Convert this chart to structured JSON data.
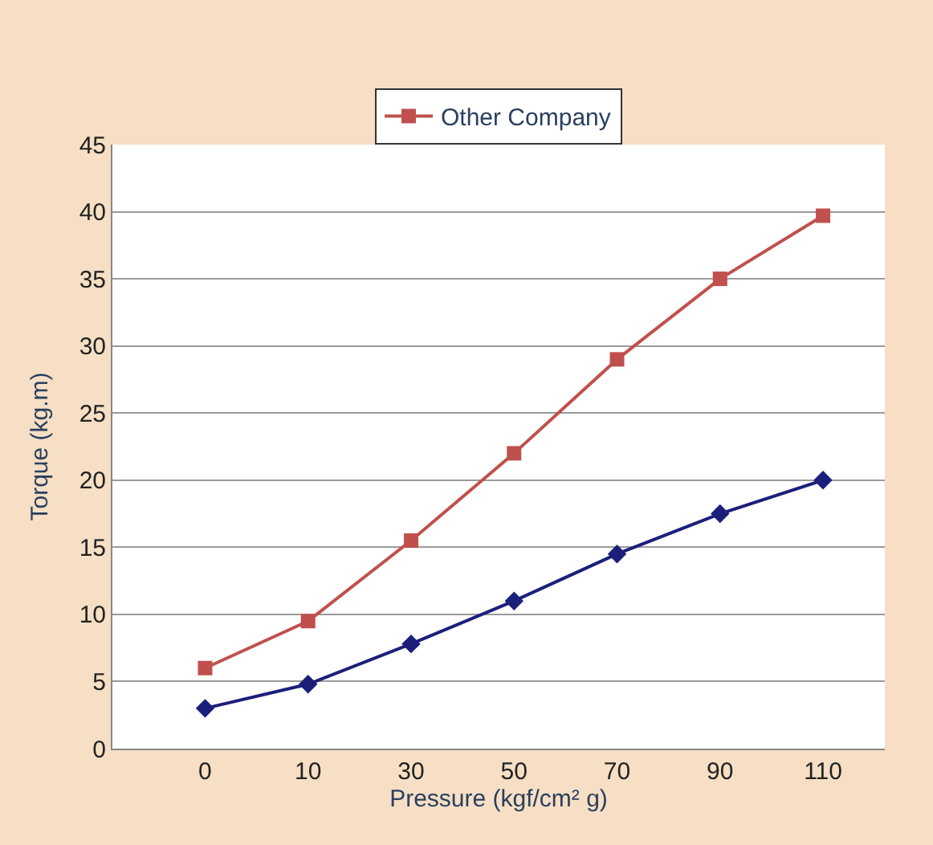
{
  "chart_data": {
    "type": "line",
    "xlabel": "Pressure (kgf/cm² g)",
    "ylabel": "Torque (kg.m)",
    "categories": [
      "0",
      "10",
      "30",
      "50",
      "70",
      "90",
      "110"
    ],
    "series": [
      {
        "color": "#1c1f7a",
        "marker": "diamond",
        "values": [
          3,
          4.8,
          7.8,
          11,
          14.5,
          17.5,
          20
        ]
      },
      {
        "name": "Other Company",
        "color": "#c0504d",
        "marker": "square",
        "values": [
          6,
          9.5,
          15.5,
          22,
          29,
          35,
          39.7
        ]
      }
    ],
    "ylim": [
      0,
      45
    ],
    "yticks": [
      0,
      5,
      10,
      15,
      20,
      25,
      30,
      35,
      40,
      45
    ],
    "grid": "y",
    "legend": "top",
    "line_style": "solid"
  }
}
